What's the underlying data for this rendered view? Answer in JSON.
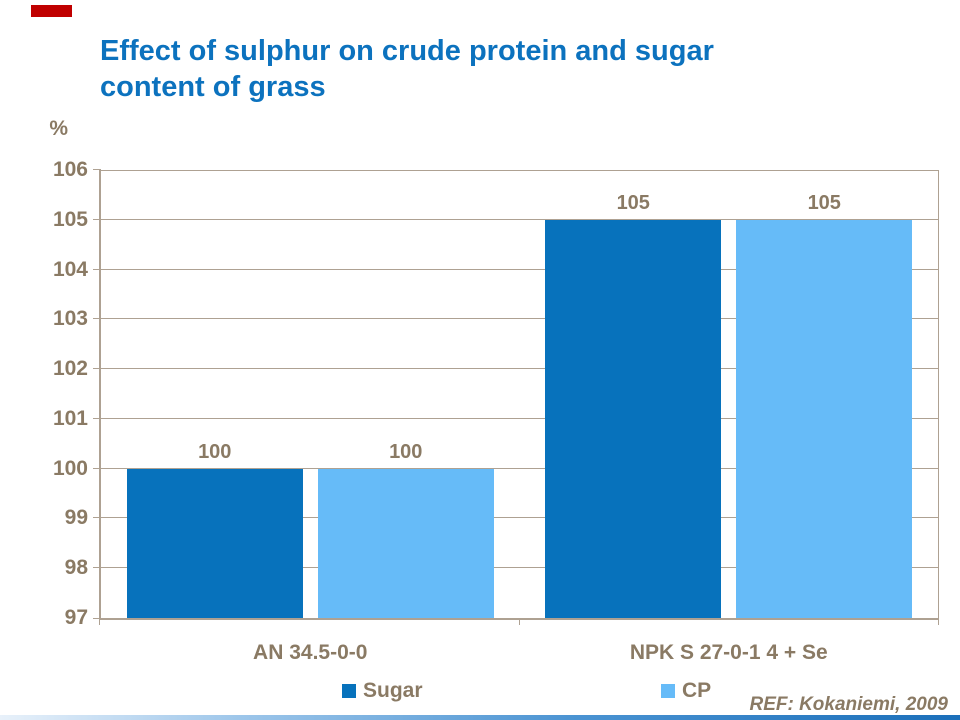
{
  "slide": {
    "title_line1": "Effect of sulphur on crude protein and sugar",
    "title_line2": "content of grass",
    "ref_text": "REF: Kokaniemi, 2009"
  },
  "colors": {
    "title_blue": "#0C72BE",
    "sugar_bar": "#0772BC",
    "cp_bar": "#66BBF8",
    "chart_text": "#8A7A64",
    "axis_line": "#AEA192",
    "accent_red": "#C00000"
  },
  "chart_data": {
    "type": "bar",
    "title": "Effect of sulphur on crude protein and sugar content of grass",
    "unit_label": "%",
    "xlabel": "",
    "ylabel": "%",
    "categories": [
      "AN 34.5-0-0",
      "NPK S 27-0-1 4 + Se"
    ],
    "series": [
      {
        "name": "Sugar",
        "color_key": "sugar_bar",
        "values": [
          100,
          105
        ]
      },
      {
        "name": "CP",
        "color_key": "cp_bar",
        "values": [
          100,
          105
        ]
      }
    ],
    "data_labels": [
      [
        "100",
        "105"
      ],
      [
        "100",
        "105"
      ]
    ],
    "ylim": [
      97,
      106
    ],
    "yticks": [
      97,
      98,
      99,
      100,
      101,
      102,
      103,
      104,
      105,
      106
    ],
    "grid": true,
    "legend_position": "bottom",
    "annotations": [
      "REF: Kokaniemi, 2009"
    ]
  }
}
